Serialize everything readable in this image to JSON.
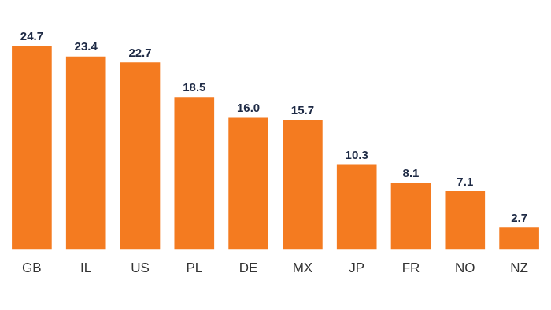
{
  "chart_data": {
    "type": "bar",
    "categories": [
      "GB",
      "IL",
      "US",
      "PL",
      "DE",
      "MX",
      "JP",
      "FR",
      "NO",
      "NZ"
    ],
    "values": [
      24.7,
      23.4,
      22.7,
      18.5,
      16.0,
      15.7,
      10.3,
      8.1,
      7.1,
      2.7
    ],
    "value_labels": [
      "24.7",
      "23.4",
      "22.7",
      "18.5",
      "16.0",
      "15.7",
      "10.3",
      "8.1",
      "7.1",
      "2.7"
    ],
    "color": "#f47b20",
    "ylim": [
      0,
      25
    ],
    "grid": false,
    "data_labels": true,
    "tick_labels": "x"
  }
}
